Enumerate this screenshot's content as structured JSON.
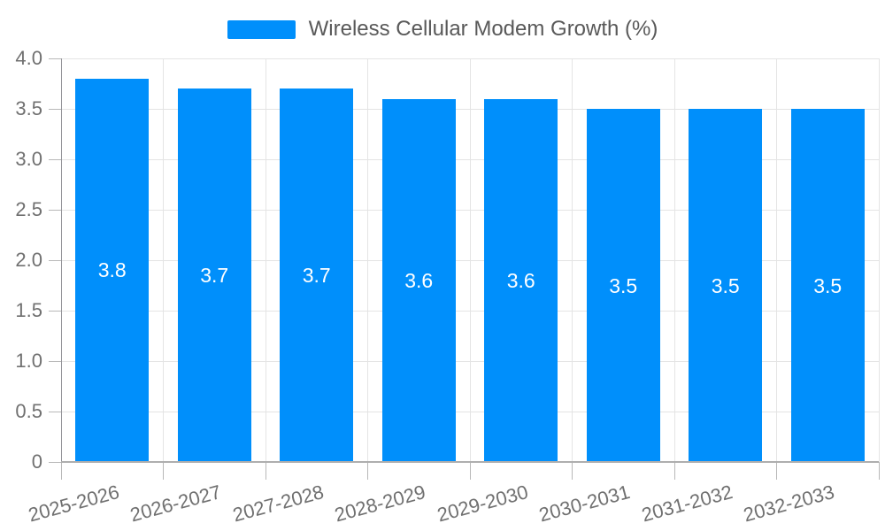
{
  "chart_data": {
    "type": "bar",
    "series_name": "Wireless Cellular Modem Growth (%)",
    "categories": [
      "2025-2026",
      "2026-2027",
      "2027-2028",
      "2028-2029",
      "2029-2030",
      "2030-2031",
      "2031-2032",
      "2032-2033"
    ],
    "values": [
      3.8,
      3.7,
      3.7,
      3.6,
      3.6,
      3.5,
      3.5,
      3.5
    ],
    "data_labels": [
      "3.8",
      "3.7",
      "3.7",
      "3.6",
      "3.6",
      "3.5",
      "3.5",
      "3.5"
    ],
    "title": "",
    "xlabel": "",
    "ylabel": "",
    "ylim": [
      0,
      4.0
    ],
    "yticks": [
      0,
      0.5,
      1.0,
      1.5,
      2.0,
      2.5,
      3.0,
      3.5,
      4.0
    ],
    "ytick_labels": [
      "0",
      "0.5",
      "1.0",
      "1.5",
      "2.0",
      "2.5",
      "3.0",
      "3.5",
      "4.0"
    ],
    "grid": true,
    "legend_position": "top",
    "colors": {
      "bar": "#008FFB",
      "data_label": "#ffffff",
      "axis_label": "#707070",
      "legend_label": "#595959",
      "gridline": "#e4e4e4",
      "y_axis_line": "#949499",
      "x_axis_line": "#aeaeae",
      "tick": "#b8b8b8",
      "background": "#ffffff"
    }
  }
}
